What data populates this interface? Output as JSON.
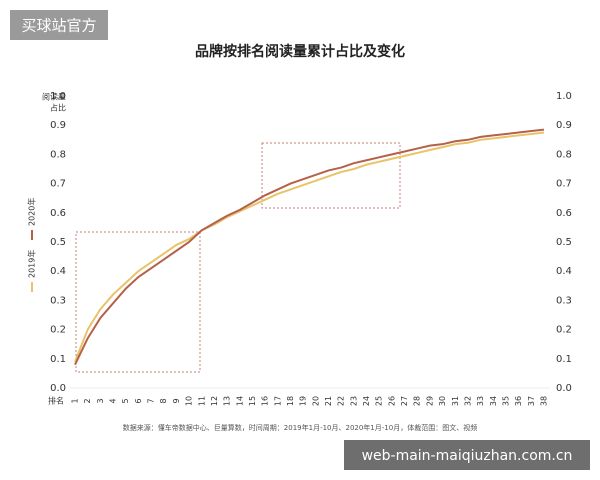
{
  "watermarks": [
    "买球站官方",
    "web-main-maiqiuzhan.com.cn"
  ],
  "chart_data": {
    "type": "line",
    "title": "品牌按排名阅读量累计占比及变化",
    "ylabel": [
      "阅读量",
      "占比"
    ],
    "xlabel": "排名",
    "source": "数据来源：懂车帝数据中心、巨量算数，时间周期：2019年1月-10月、2020年1月-10月，体裁范围：图文、视频",
    "x": [
      1,
      2,
      3,
      4,
      5,
      6,
      7,
      8,
      9,
      10,
      11,
      12,
      13,
      14,
      15,
      16,
      17,
      18,
      19,
      20,
      21,
      22,
      23,
      24,
      25,
      26,
      27,
      28,
      29,
      30,
      31,
      32,
      33,
      34,
      35,
      36,
      37,
      38
    ],
    "xlim": [
      1,
      38
    ],
    "xticks": [
      1,
      2,
      3,
      4,
      5,
      6,
      7,
      8,
      9,
      10,
      11,
      12,
      13,
      14,
      15,
      16,
      17,
      18,
      19,
      20,
      21,
      22,
      23,
      24,
      25,
      26,
      27,
      28,
      29,
      30,
      31,
      32,
      33,
      34,
      35,
      36,
      37,
      38
    ],
    "ylim": [
      0,
      1
    ],
    "yticks": [
      {
        "value": 0,
        "label": "0.0"
      },
      0.1,
      0.2,
      0.3,
      0.4,
      0.5,
      0.6,
      0.7,
      0.8,
      0.9,
      {
        "value": 1,
        "label": "1.0"
      }
    ],
    "y2lim": [
      0,
      1
    ],
    "y2ticks": [
      {
        "value": 0,
        "label": "0.0"
      },
      0.1,
      0.2,
      0.3,
      0.4,
      0.5,
      0.6,
      0.7,
      0.8,
      0.9,
      {
        "value": 1,
        "label": "1.0"
      }
    ],
    "grid": false,
    "series": [
      {
        "name": "2019年",
        "color": "#e8c36a",
        "values": [
          0.09,
          0.2,
          0.27,
          0.32,
          0.36,
          0.4,
          0.43,
          0.46,
          0.49,
          0.51,
          0.54,
          0.56,
          0.585,
          0.605,
          0.625,
          0.645,
          0.665,
          0.68,
          0.695,
          0.71,
          0.725,
          0.74,
          0.75,
          0.765,
          0.775,
          0.785,
          0.795,
          0.805,
          0.815,
          0.825,
          0.835,
          0.84,
          0.85,
          0.855,
          0.86,
          0.865,
          0.87,
          0.875
        ]
      },
      {
        "name": "2020年",
        "color": "#b5614a",
        "values": [
          0.08,
          0.17,
          0.24,
          0.29,
          0.34,
          0.38,
          0.41,
          0.44,
          0.47,
          0.5,
          0.54,
          0.565,
          0.59,
          0.61,
          0.635,
          0.66,
          0.68,
          0.7,
          0.715,
          0.73,
          0.745,
          0.755,
          0.77,
          0.78,
          0.79,
          0.8,
          0.81,
          0.82,
          0.83,
          0.835,
          0.845,
          0.85,
          0.86,
          0.865,
          0.87,
          0.875,
          0.88,
          0.885
        ]
      }
    ]
  }
}
